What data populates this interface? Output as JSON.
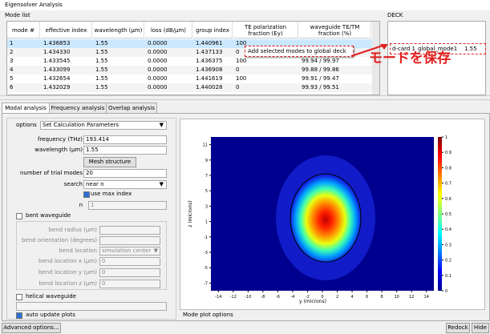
{
  "window": {
    "title": "Eigensolver Analysis"
  },
  "mode_list": {
    "title": "Mode list",
    "columns": [
      "mode #",
      "effective index",
      "wavelength (μm)",
      "loss (dB/μm)",
      "group index",
      "TE polarization fraction (Ey)",
      "waveguide TE/TM fraction (%)"
    ],
    "rows": [
      [
        "1",
        "1.436853",
        "1.55",
        "0.0000",
        "1.440961",
        "100"
      ],
      [
        "2",
        "1.434330",
        "1.55",
        "0.0000",
        "1.437133",
        "0"
      ],
      [
        "3",
        "1.433545",
        "1.55",
        "0.0000",
        "1.436375",
        "100",
        "99.94 / 99.97"
      ],
      [
        "4",
        "1.433099",
        "1.55",
        "0.0000",
        "1.436908",
        "0",
        "99.88 / 99.86"
      ],
      [
        "5",
        "1.432654",
        "1.55",
        "0.0000",
        "1.441619",
        "100",
        "99.91 / 99.47"
      ],
      [
        "6",
        "1.432029",
        "1.55",
        "0.0000",
        "1.440028",
        "0",
        "99.93 / 99.51"
      ]
    ],
    "context_menu": "Add selected modes to global deck"
  },
  "deck": {
    "title": "DECK",
    "row": [
      "d-card 1",
      "global_mode1",
      "1.55"
    ]
  },
  "annotation": "モードを保存",
  "tabs": [
    "Modal analysis",
    "Frequency analysis",
    "Overlap analysis"
  ],
  "form": {
    "options_label": "options",
    "options_value": "Set Calculation Parameters",
    "frequency_label": "frequency (THz)",
    "frequency": "193.414",
    "wavelength_label": "wavelength (μm)",
    "wavelength": "1.55",
    "mesh_button": "Mesh structure",
    "trial_modes_label": "number of trial modes",
    "trial_modes": "20",
    "search_label": "search",
    "search": "near n",
    "use_max_index": "use max index",
    "n_label": "n",
    "n": "1",
    "bent_waveguide": "bent waveguide",
    "bend_radius": "bend radius (μm)",
    "bend_orientation": "bend orientation (degrees)",
    "bend_location": "bend location",
    "bend_location_value": "simulation center",
    "bend_x": "bend location x (μm)",
    "bend_x_value": "0",
    "bend_y": "bend location y (μm)",
    "bend_y_value": "0",
    "bend_z": "bend location z (μm)",
    "bend_z_value": "0",
    "helical_waveguide": "helical waveguide",
    "auto_update": "auto update plots"
  },
  "plot": {
    "xlabel": "y (microns)",
    "ylabel": "z (microns)",
    "xlim": [
      -15,
      15
    ],
    "xticks": [
      -14,
      -12,
      -10,
      -8,
      -6,
      -4,
      -2,
      0,
      2,
      4,
      6,
      8,
      10,
      12,
      14
    ],
    "ylim": [
      -8,
      12
    ],
    "yticks": [
      -7,
      -5,
      -3,
      -1,
      1,
      3,
      5,
      7,
      9,
      11
    ],
    "clim": [
      0,
      1
    ],
    "cticks": [
      0,
      0.1,
      0.2,
      0.3,
      0.4,
      0.5,
      0.6,
      0.7,
      0.8,
      0.9,
      1
    ],
    "options_title": "Mode plot options"
  },
  "buttons": {
    "advanced": "Advanced options...",
    "redock": "Redock",
    "hide": "Hide"
  }
}
